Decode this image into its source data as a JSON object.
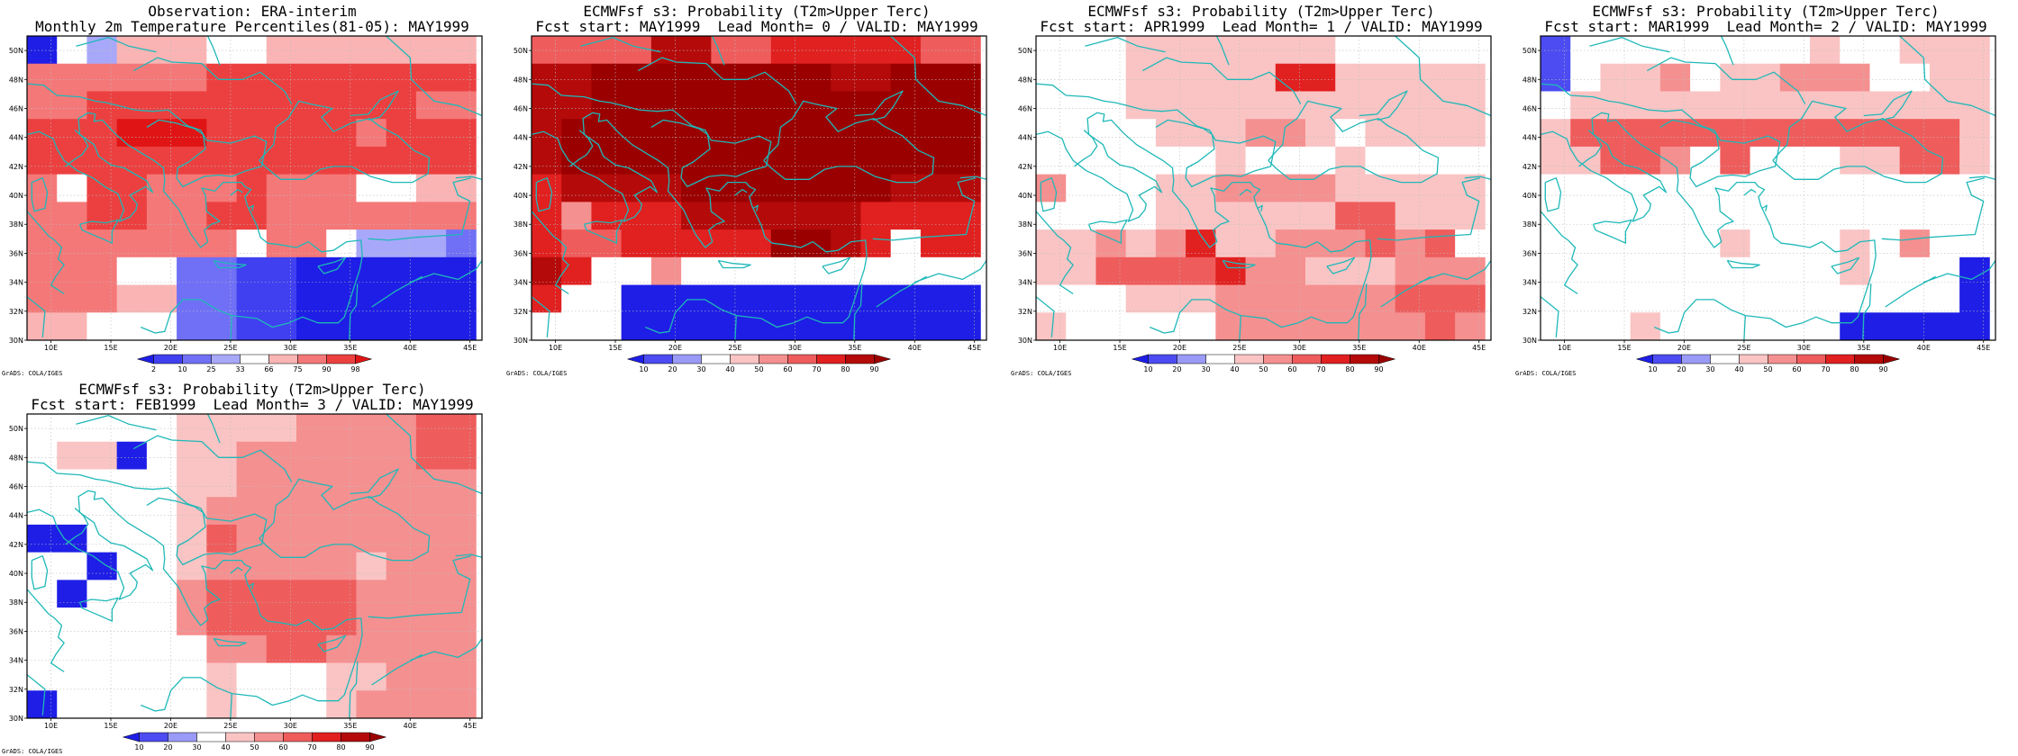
{
  "colors": {
    "coast": "#1fb8b8",
    "frame": "#000000",
    "grid": "#bdbdbd"
  },
  "credit": "GrADS: COLA/IGES",
  "colorbar_obs": {
    "labels": [
      "2",
      "10",
      "25",
      "33",
      "66",
      "75",
      "90",
      "98"
    ],
    "colors": [
      "#1e1ee6",
      "#4040f0",
      "#7070f6",
      "#a8a8fa",
      "#ffffff",
      "#fab4b4",
      "#f57878",
      "#ec4040",
      "#e01414"
    ]
  },
  "colorbar_prob": {
    "labels": [
      "10",
      "20",
      "30",
      "40",
      "50",
      "60",
      "70",
      "80",
      "90"
    ],
    "colors": [
      "#1e1ee6",
      "#4c4cf2",
      "#9a9af8",
      "#ffffff",
      "#fac4c4",
      "#f59090",
      "#ef5c5c",
      "#e12020",
      "#b40a0a",
      "#9a0000"
    ]
  },
  "chart_data": [
    {
      "type": "heatmap",
      "title": "Observation: ERA-interim",
      "subtitle": "Monthly 2m Temperature Percentiles(81-05): MAY1999",
      "xlabel": "",
      "ylabel": "",
      "xlim": [
        8,
        46
      ],
      "ylim": [
        30,
        51
      ],
      "x_ticks": [
        "10E",
        "15E",
        "20E",
        "25E",
        "30E",
        "35E",
        "40E",
        "45E"
      ],
      "y_ticks": [
        "30N",
        "32N",
        "34N",
        "36N",
        "38N",
        "40N",
        "42N",
        "44N",
        "46N",
        "48N",
        "50N"
      ],
      "grid": true,
      "colorbar": "obs",
      "cell_deg": 2.5,
      "classes": [
        [
          0,
          4,
          3,
          5,
          5,
          5,
          4,
          4,
          5,
          5,
          5,
          5,
          5,
          5,
          5
        ],
        [
          6,
          6,
          6,
          6,
          6,
          6,
          7,
          7,
          7,
          7,
          7,
          7,
          7,
          7,
          7
        ],
        [
          6,
          6,
          7,
          7,
          7,
          7,
          7,
          7,
          7,
          7,
          7,
          7,
          7,
          6,
          6
        ],
        [
          7,
          7,
          7,
          8,
          8,
          8,
          7,
          7,
          7,
          7,
          7,
          6,
          7,
          7,
          7
        ],
        [
          7,
          7,
          7,
          7,
          7,
          7,
          7,
          7,
          7,
          7,
          7,
          7,
          7,
          7,
          7
        ],
        [
          6,
          4,
          7,
          7,
          6,
          6,
          6,
          7,
          6,
          6,
          6,
          4,
          4,
          5,
          5
        ],
        [
          6,
          6,
          7,
          7,
          6,
          6,
          7,
          7,
          6,
          6,
          6,
          6,
          6,
          6,
          6
        ],
        [
          6,
          6,
          6,
          6,
          6,
          6,
          6,
          4,
          6,
          6,
          4,
          3,
          3,
          3,
          2
        ],
        [
          6,
          6,
          6,
          4,
          4,
          2,
          2,
          1,
          1,
          0,
          0,
          0,
          0,
          0,
          0
        ],
        [
          6,
          6,
          6,
          5,
          5,
          2,
          2,
          1,
          1,
          0,
          0,
          0,
          0,
          0,
          0
        ],
        [
          5,
          5,
          4,
          4,
          4,
          2,
          2,
          1,
          1,
          0,
          0,
          0,
          0,
          0,
          0
        ]
      ]
    },
    {
      "type": "heatmap",
      "title": "ECMWFsf s3: Probability (T2m>Upper Terc)",
      "subtitle": "Fcst start: MAY1999  Lead Month= 0 / VALID: MAY1999",
      "xlabel": "",
      "ylabel": "",
      "xlim": [
        8,
        46
      ],
      "ylim": [
        30,
        51
      ],
      "x_ticks": [
        "10E",
        "15E",
        "20E",
        "25E",
        "30E",
        "35E",
        "40E",
        "45E"
      ],
      "y_ticks": [
        "30N",
        "32N",
        "34N",
        "36N",
        "38N",
        "40N",
        "42N",
        "44N",
        "46N",
        "48N",
        "50N"
      ],
      "grid": true,
      "colorbar": "prob",
      "cell_deg": 2.5,
      "classes": [
        [
          6,
          6,
          6,
          6,
          8,
          8,
          6,
          6,
          7,
          7,
          7,
          7,
          7,
          6,
          6
        ],
        [
          8,
          8,
          9,
          9,
          9,
          9,
          9,
          9,
          9,
          9,
          8,
          8,
          9,
          9,
          9
        ],
        [
          8,
          8,
          9,
          9,
          9,
          9,
          9,
          9,
          9,
          9,
          9,
          9,
          9,
          9,
          9
        ],
        [
          8,
          9,
          9,
          9,
          9,
          9,
          9,
          9,
          9,
          9,
          9,
          9,
          9,
          9,
          9
        ],
        [
          8,
          9,
          9,
          9,
          9,
          9,
          9,
          9,
          9,
          9,
          9,
          9,
          9,
          9,
          9
        ],
        [
          7,
          8,
          8,
          8,
          8,
          9,
          9,
          9,
          9,
          9,
          9,
          9,
          8,
          8,
          8
        ],
        [
          7,
          5,
          7,
          7,
          7,
          8,
          8,
          8,
          8,
          8,
          8,
          7,
          7,
          7,
          7
        ],
        [
          7,
          6,
          6,
          7,
          7,
          7,
          7,
          7,
          9,
          9,
          8,
          7,
          3,
          7,
          7
        ],
        [
          8,
          7,
          3,
          3,
          5,
          3,
          3,
          3,
          3,
          3,
          3,
          3,
          3,
          3,
          3
        ],
        [
          7,
          3,
          3,
          0,
          0,
          0,
          0,
          0,
          0,
          0,
          0,
          0,
          0,
          0,
          0
        ],
        [
          3,
          3,
          3,
          0,
          0,
          0,
          0,
          0,
          0,
          0,
          0,
          0,
          0,
          0,
          0
        ]
      ]
    },
    {
      "type": "heatmap",
      "title": "ECMWFsf s3: Probability (T2m>Upper Terc)",
      "subtitle": "Fcst start: APR1999  Lead Month= 1 / VALID: MAY1999",
      "xlabel": "",
      "ylabel": "",
      "xlim": [
        8,
        46
      ],
      "ylim": [
        30,
        51
      ],
      "x_ticks": [
        "10E",
        "15E",
        "20E",
        "25E",
        "30E",
        "35E",
        "40E",
        "45E"
      ],
      "y_ticks": [
        "30N",
        "32N",
        "34N",
        "36N",
        "38N",
        "40N",
        "42N",
        "44N",
        "46N",
        "48N",
        "50N"
      ],
      "grid": true,
      "colorbar": "prob",
      "cell_deg": 2.5,
      "classes": [
        [
          3,
          3,
          3,
          4,
          4,
          4,
          4,
          4,
          4,
          4,
          3,
          3,
          3,
          3,
          3
        ],
        [
          3,
          3,
          3,
          4,
          4,
          4,
          4,
          4,
          7,
          7,
          4,
          4,
          4,
          4,
          4
        ],
        [
          3,
          3,
          3,
          4,
          4,
          4,
          4,
          4,
          4,
          4,
          4,
          4,
          4,
          4,
          4
        ],
        [
          3,
          3,
          3,
          3,
          4,
          4,
          4,
          5,
          5,
          4,
          3,
          4,
          4,
          4,
          4
        ],
        [
          3,
          3,
          3,
          3,
          3,
          3,
          4,
          3,
          3,
          3,
          4,
          3,
          3,
          3,
          3
        ],
        [
          5,
          3,
          3,
          3,
          4,
          4,
          5,
          5,
          5,
          5,
          4,
          4,
          4,
          4,
          4
        ],
        [
          3,
          3,
          3,
          3,
          4,
          4,
          4,
          4,
          4,
          4,
          6,
          6,
          4,
          4,
          4
        ],
        [
          4,
          4,
          5,
          4,
          5,
          7,
          4,
          4,
          5,
          5,
          5,
          6,
          5,
          6,
          3
        ],
        [
          4,
          4,
          6,
          6,
          6,
          6,
          7,
          5,
          5,
          4,
          4,
          4,
          5,
          5,
          5
        ],
        [
          3,
          3,
          3,
          4,
          4,
          4,
          5,
          5,
          5,
          5,
          5,
          5,
          6,
          6,
          6
        ],
        [
          4,
          3,
          3,
          3,
          3,
          3,
          5,
          5,
          5,
          5,
          5,
          5,
          5,
          6,
          5
        ]
      ]
    },
    {
      "type": "heatmap",
      "title": "ECMWFsf s3: Probability (T2m>Upper Terc)",
      "subtitle": "Fcst start: MAR1999  Lead Month= 2 / VALID: MAY1999",
      "xlabel": "",
      "ylabel": "",
      "xlim": [
        8,
        46
      ],
      "ylim": [
        30,
        51
      ],
      "x_ticks": [
        "10E",
        "15E",
        "20E",
        "25E",
        "30E",
        "35E",
        "40E",
        "45E"
      ],
      "y_ticks": [
        "30N",
        "32N",
        "34N",
        "36N",
        "38N",
        "40N",
        "42N",
        "44N",
        "46N",
        "48N",
        "50N"
      ],
      "grid": true,
      "colorbar": "prob",
      "cell_deg": 2.5,
      "classes": [
        [
          1,
          3,
          3,
          3,
          3,
          3,
          3,
          3,
          3,
          4,
          3,
          3,
          4,
          4,
          4
        ],
        [
          1,
          3,
          4,
          4,
          5,
          3,
          4,
          4,
          5,
          5,
          5,
          3,
          3,
          4,
          4
        ],
        [
          3,
          4,
          4,
          4,
          4,
          4,
          4,
          4,
          4,
          4,
          4,
          4,
          4,
          4,
          4
        ],
        [
          4,
          6,
          6,
          6,
          6,
          6,
          6,
          6,
          6,
          6,
          6,
          6,
          6,
          6,
          4
        ],
        [
          4,
          4,
          6,
          6,
          5,
          3,
          6,
          3,
          3,
          3,
          4,
          4,
          6,
          6,
          4
        ],
        [
          3,
          3,
          3,
          3,
          3,
          3,
          3,
          3,
          3,
          3,
          3,
          3,
          3,
          3,
          3
        ],
        [
          3,
          3,
          3,
          3,
          3,
          3,
          3,
          3,
          3,
          3,
          3,
          3,
          3,
          3,
          3
        ],
        [
          3,
          3,
          3,
          3,
          3,
          3,
          4,
          3,
          3,
          3,
          4,
          3,
          5,
          3,
          3
        ],
        [
          3,
          3,
          3,
          3,
          3,
          3,
          3,
          3,
          3,
          3,
          4,
          3,
          3,
          3,
          0
        ],
        [
          3,
          3,
          3,
          3,
          3,
          3,
          3,
          3,
          3,
          3,
          3,
          3,
          3,
          3,
          0
        ],
        [
          3,
          3,
          3,
          4,
          3,
          3,
          3,
          3,
          3,
          3,
          0,
          0,
          0,
          0,
          0
        ]
      ]
    },
    {
      "type": "heatmap",
      "title": "ECMWFsf s3: Probability (T2m>Upper Terc)",
      "subtitle": "Fcst start: FEB1999  Lead Month= 3 / VALID: MAY1999",
      "xlabel": "",
      "ylabel": "",
      "xlim": [
        8,
        46
      ],
      "ylim": [
        30,
        51
      ],
      "x_ticks": [
        "10E",
        "15E",
        "20E",
        "25E",
        "30E",
        "35E",
        "40E",
        "45E"
      ],
      "y_ticks": [
        "30N",
        "32N",
        "34N",
        "36N",
        "38N",
        "40N",
        "42N",
        "44N",
        "46N",
        "48N",
        "50N"
      ],
      "grid": true,
      "colorbar": "prob",
      "cell_deg": 2.5,
      "classes": [
        [
          3,
          3,
          3,
          3,
          3,
          4,
          4,
          4,
          4,
          5,
          5,
          5,
          5,
          6,
          6
        ],
        [
          3,
          4,
          4,
          0,
          3,
          4,
          4,
          5,
          5,
          5,
          5,
          5,
          5,
          6,
          6
        ],
        [
          3,
          3,
          3,
          3,
          3,
          4,
          4,
          5,
          5,
          5,
          5,
          5,
          5,
          5,
          5
        ],
        [
          3,
          3,
          3,
          3,
          3,
          4,
          5,
          5,
          5,
          5,
          5,
          5,
          5,
          5,
          5
        ],
        [
          0,
          0,
          3,
          3,
          3,
          4,
          6,
          5,
          5,
          5,
          5,
          5,
          5,
          5,
          5
        ],
        [
          3,
          3,
          0,
          3,
          3,
          4,
          5,
          5,
          5,
          5,
          5,
          4,
          5,
          5,
          5
        ],
        [
          3,
          0,
          3,
          3,
          3,
          5,
          6,
          6,
          6,
          6,
          6,
          5,
          5,
          5,
          5
        ],
        [
          3,
          3,
          3,
          3,
          3,
          5,
          6,
          6,
          6,
          6,
          6,
          5,
          5,
          5,
          5
        ],
        [
          3,
          3,
          3,
          3,
          3,
          3,
          5,
          5,
          6,
          6,
          5,
          5,
          5,
          5,
          5
        ],
        [
          3,
          3,
          3,
          3,
          3,
          3,
          4,
          3,
          3,
          3,
          4,
          4,
          5,
          5,
          5
        ],
        [
          0,
          3,
          3,
          3,
          3,
          3,
          4,
          3,
          3,
          3,
          4,
          5,
          5,
          5,
          5
        ]
      ]
    }
  ]
}
